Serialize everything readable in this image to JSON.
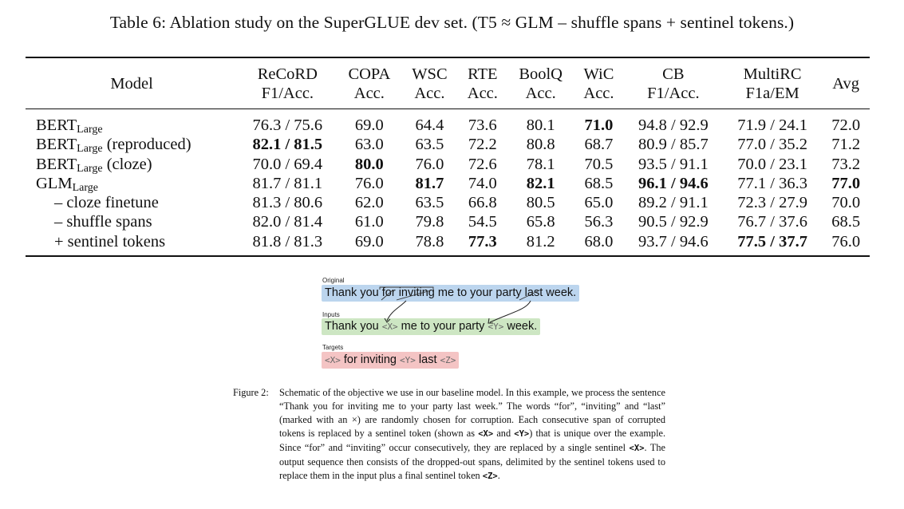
{
  "table": {
    "caption": "Table 6: Ablation study on the SuperGLUE dev set. (T5 ≈ GLM – shuffle spans + sentinel tokens.)",
    "headers": [
      {
        "top": "Model",
        "bottom": ""
      },
      {
        "top": "ReCoRD",
        "bottom": "F1/Acc."
      },
      {
        "top": "COPA",
        "bottom": "Acc."
      },
      {
        "top": "WSC",
        "bottom": "Acc."
      },
      {
        "top": "RTE",
        "bottom": "Acc."
      },
      {
        "top": "BoolQ",
        "bottom": "Acc."
      },
      {
        "top": "WiC",
        "bottom": "Acc."
      },
      {
        "top": "CB",
        "bottom": "F1/Acc."
      },
      {
        "top": "MultiRC",
        "bottom": "F1a/EM"
      },
      {
        "top": "Avg",
        "bottom": ""
      }
    ],
    "rows": [
      {
        "model": "BERT",
        "sub": "Large",
        "suffix": "",
        "indent": false,
        "cells": [
          {
            "v": "76.3 / 75.6",
            "b": false
          },
          {
            "v": "69.0",
            "b": false
          },
          {
            "v": "64.4",
            "b": false
          },
          {
            "v": "73.6",
            "b": false
          },
          {
            "v": "80.1",
            "b": false
          },
          {
            "v": "71.0",
            "b": true
          },
          {
            "v": "94.8 / 92.9",
            "b": false
          },
          {
            "v": "71.9 / 24.1",
            "b": false
          },
          {
            "v": "72.0",
            "b": false
          }
        ]
      },
      {
        "model": "BERT",
        "sub": "Large",
        "suffix": " (reproduced)",
        "indent": false,
        "cells": [
          {
            "v": "82.1 / 81.5",
            "b": true
          },
          {
            "v": "63.0",
            "b": false
          },
          {
            "v": "63.5",
            "b": false
          },
          {
            "v": "72.2",
            "b": false
          },
          {
            "v": "80.8",
            "b": false
          },
          {
            "v": "68.7",
            "b": false
          },
          {
            "v": "80.9 / 85.7",
            "b": false
          },
          {
            "v": "77.0 / 35.2",
            "b": false
          },
          {
            "v": "71.2",
            "b": false
          }
        ]
      },
      {
        "model": "BERT",
        "sub": "Large",
        "suffix": " (cloze)",
        "indent": false,
        "cells": [
          {
            "v": "70.0 / 69.4",
            "b": false
          },
          {
            "v": "80.0",
            "b": true
          },
          {
            "v": "76.0",
            "b": false
          },
          {
            "v": "72.6",
            "b": false
          },
          {
            "v": "78.1",
            "b": false
          },
          {
            "v": "70.5",
            "b": false
          },
          {
            "v": "93.5 / 91.1",
            "b": false
          },
          {
            "v": "70.0 / 23.1",
            "b": false
          },
          {
            "v": "73.2",
            "b": false
          }
        ]
      },
      {
        "model": "GLM",
        "sub": "Large",
        "suffix": "",
        "indent": false,
        "cells": [
          {
            "v": "81.7 / 81.1",
            "b": false
          },
          {
            "v": "76.0",
            "b": false
          },
          {
            "v": "81.7",
            "b": true
          },
          {
            "v": "74.0",
            "b": false
          },
          {
            "v": "82.1",
            "b": true
          },
          {
            "v": "68.5",
            "b": false
          },
          {
            "v": "96.1 / 94.6",
            "b": true
          },
          {
            "v": "77.1 / 36.3",
            "b": false
          },
          {
            "v": "77.0",
            "b": true
          }
        ]
      },
      {
        "model": "– cloze finetune",
        "sub": "",
        "suffix": "",
        "indent": true,
        "cells": [
          {
            "v": "81.3 / 80.6",
            "b": false
          },
          {
            "v": "62.0",
            "b": false
          },
          {
            "v": "63.5",
            "b": false
          },
          {
            "v": "66.8",
            "b": false
          },
          {
            "v": "80.5",
            "b": false
          },
          {
            "v": "65.0",
            "b": false
          },
          {
            "v": "89.2 / 91.1",
            "b": false
          },
          {
            "v": "72.3 / 27.9",
            "b": false
          },
          {
            "v": "70.0",
            "b": false
          }
        ]
      },
      {
        "model": "– shuffle spans",
        "sub": "",
        "suffix": "",
        "indent": true,
        "cells": [
          {
            "v": "82.0 / 81.4",
            "b": false
          },
          {
            "v": "61.0",
            "b": false
          },
          {
            "v": "79.8",
            "b": false
          },
          {
            "v": "54.5",
            "b": false
          },
          {
            "v": "65.8",
            "b": false
          },
          {
            "v": "56.3",
            "b": false
          },
          {
            "v": "90.5 / 92.9",
            "b": false
          },
          {
            "v": "76.7 / 37.6",
            "b": false
          },
          {
            "v": "68.5",
            "b": false
          }
        ]
      },
      {
        "model": "+ sentinel tokens",
        "sub": "",
        "suffix": "",
        "indent": true,
        "cells": [
          {
            "v": "81.8 / 81.3",
            "b": false
          },
          {
            "v": "69.0",
            "b": false
          },
          {
            "v": "78.8",
            "b": false
          },
          {
            "v": "77.3",
            "b": true
          },
          {
            "v": "81.2",
            "b": false
          },
          {
            "v": "68.0",
            "b": false
          },
          {
            "v": "93.7 / 94.6",
            "b": false
          },
          {
            "v": "77.5 / 37.7",
            "b": true
          },
          {
            "v": "76.0",
            "b": false
          }
        ]
      }
    ]
  },
  "figure": {
    "original_label": "Original text",
    "original_parts": [
      "Thank you ",
      "for",
      " ",
      "inviting",
      " me to your party ",
      "last",
      " week."
    ],
    "inputs_label": "Inputs",
    "inputs_parts": [
      "Thank you ",
      "<X>",
      " me to your party ",
      "<Y>",
      " week."
    ],
    "targets_label": "Targets",
    "targets_parts": [
      "<X>",
      " for inviting ",
      "<Y>",
      " last ",
      "<Z>"
    ],
    "colors": {
      "original": "#bcd5ee",
      "inputs": "#cde6c3",
      "targets": "#f4c4c4"
    },
    "caption_label": "Figure 2:",
    "caption_segments": [
      "Schematic of the objective we use in our baseline model. In this example, we process the sentence “Thank you for inviting me to your party last week.” The words “for”, “inviting” and “last” (marked with an ×) are randomly chosen for corruption. Each consecutive span of corrupted tokens is replaced by a sentinel token (shown as ",
      "<X>",
      " and ",
      "<Y>",
      ") that is unique over the example. Since “for” and “inviting” occur consecutively, they are replaced by a single sentinel ",
      "<X>",
      ". The output sequence then consists of the dropped-out spans, delimited by the sentinel tokens used to replace them in the input plus a final sentinel token ",
      "<Z>",
      "."
    ]
  }
}
